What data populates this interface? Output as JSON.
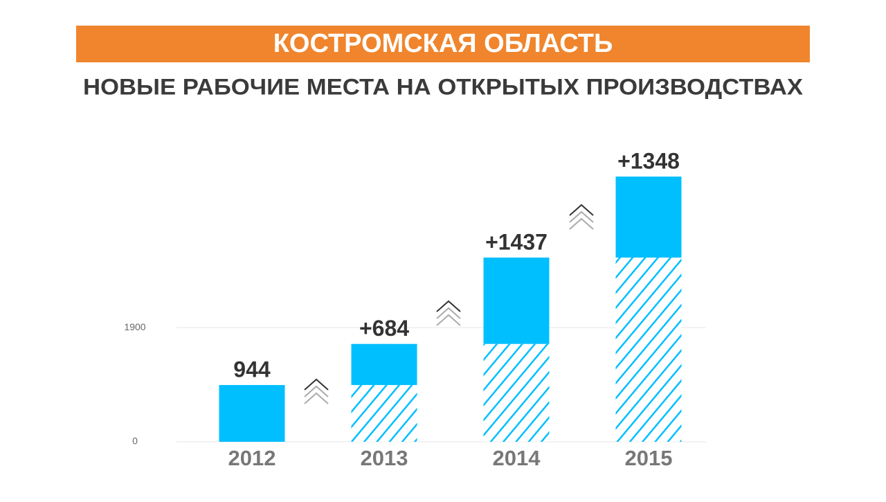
{
  "chart_data": {
    "type": "bar",
    "stacked": true,
    "title": "КОСТРОМСКАЯ ОБЛАСТЬ",
    "subtitle": "НОВЫЕ РАБОЧИЕ МЕСТА НА ОТКРЫТЫХ ПРОИЗВОДСТВАХ",
    "categories": [
      "2012",
      "2013",
      "2014",
      "2015"
    ],
    "values": [
      944,
      684,
      1437,
      1348
    ],
    "value_labels": [
      "944",
      "+684",
      "+1437",
      "+1348"
    ],
    "color": "#00bfff",
    "ylim": [
      0,
      1900
    ],
    "yticks": [
      0,
      1900
    ],
    "grid": true
  }
}
